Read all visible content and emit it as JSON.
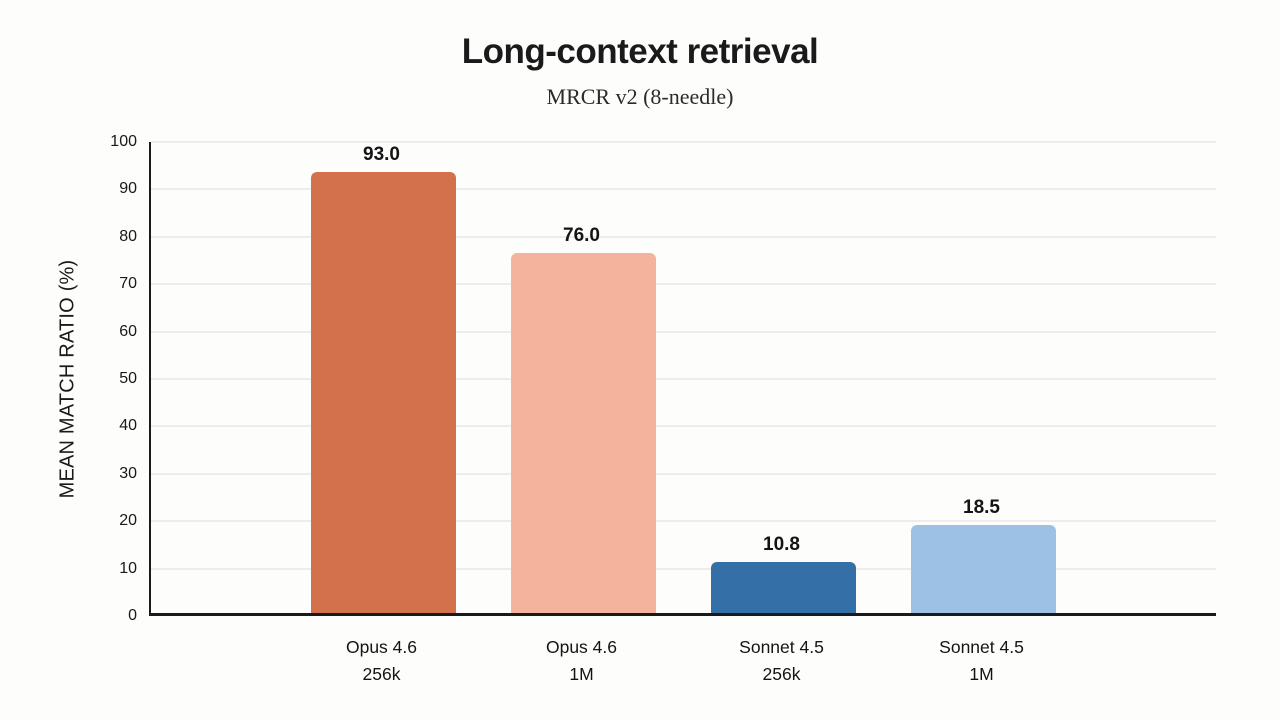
{
  "page": {
    "background_color": "#fdfdfc",
    "text_color": "#191919"
  },
  "chart_data": {
    "type": "bar",
    "title": "Long-context retrieval",
    "subtitle": "MRCR v2 (8-needle)",
    "ylabel": "MEAN MATCH RATIO (%)",
    "xlabel": "",
    "categories": [
      [
        "Opus 4.6",
        "256k"
      ],
      [
        "Opus 4.6",
        "1M"
      ],
      [
        "Sonnet 4.5",
        "256k"
      ],
      [
        "Sonnet 4.5",
        "1M"
      ]
    ],
    "values": [
      93.0,
      76.0,
      10.8,
      18.5
    ],
    "value_labels": [
      "93.0",
      "76.0",
      "10.8",
      "18.5"
    ],
    "bar_colors": [
      "#d2714c",
      "#f4b39d",
      "#3470a7",
      "#9dc0e5"
    ],
    "ylim": [
      0,
      100
    ],
    "yticks": [
      0,
      10,
      20,
      30,
      40,
      50,
      60,
      70,
      80,
      90,
      100
    ],
    "grid": "horizontal",
    "gridline_color": "#eeedeb",
    "axis_color": "#1a1a1a",
    "legend_position": "none"
  }
}
